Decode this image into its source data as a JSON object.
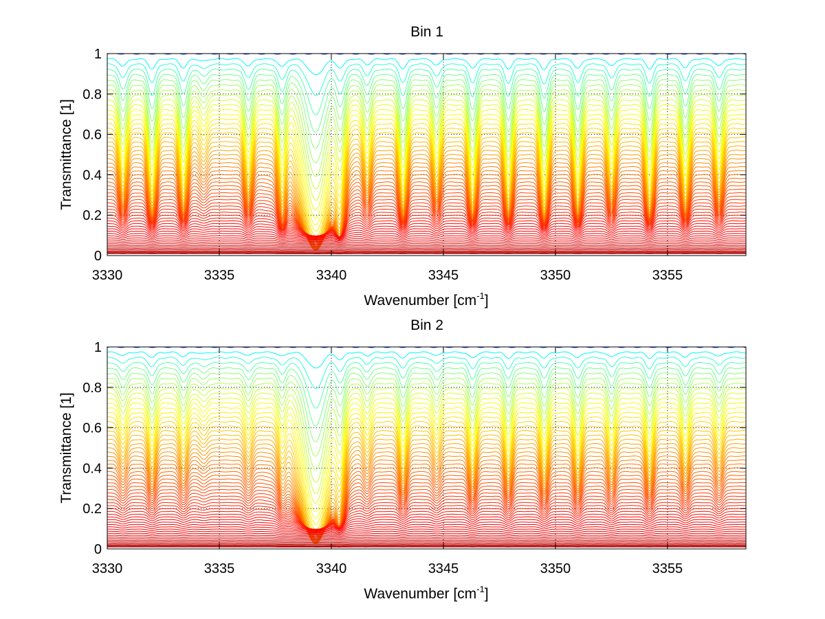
{
  "chart_data": [
    {
      "type": "line",
      "title": "Bin 1",
      "xlabel_main": "Wavenumber [cm",
      "xlabel_sup": "-1",
      "xlabel_tail": "]",
      "ylabel": "Transmittance [1]",
      "xlim": [
        3330,
        3358.5
      ],
      "ylim": [
        0,
        1
      ],
      "xticks": [
        3330,
        3335,
        3340,
        3345,
        3350,
        3355
      ],
      "xtick_labels": [
        "3330",
        "3335",
        "3340",
        "3345",
        "3350",
        "3355"
      ],
      "yticks": [
        0,
        0.2,
        0.4,
        0.6,
        0.8,
        1
      ],
      "ytick_labels": [
        "0",
        "0.2",
        "0.4",
        "0.6",
        "0.8",
        "1"
      ],
      "grid": true,
      "colormap": "jet",
      "series_count": 60,
      "baseline_top": 1.0,
      "baseline_bottom": 0.01,
      "absorption_lines": [
        {
          "x": 3330.7,
          "depth": 0.45,
          "width": 0.16
        },
        {
          "x": 3332.0,
          "depth": 0.6,
          "width": 0.16
        },
        {
          "x": 3333.4,
          "depth": 0.55,
          "width": 0.16
        },
        {
          "x": 3334.3,
          "depth": 0.15,
          "width": 0.16
        },
        {
          "x": 3336.3,
          "depth": 0.45,
          "width": 0.16
        },
        {
          "x": 3337.8,
          "depth": 0.5,
          "width": 0.16
        },
        {
          "x": 3339.3,
          "depth": 1.0,
          "width": 0.3
        },
        {
          "x": 3340.4,
          "depth": 0.55,
          "width": 0.18
        },
        {
          "x": 3341.6,
          "depth": 0.35,
          "width": 0.16
        },
        {
          "x": 3343.2,
          "depth": 0.6,
          "width": 0.16
        },
        {
          "x": 3344.7,
          "depth": 0.4,
          "width": 0.16
        },
        {
          "x": 3346.3,
          "depth": 0.6,
          "width": 0.16
        },
        {
          "x": 3347.9,
          "depth": 0.6,
          "width": 0.16
        },
        {
          "x": 3349.5,
          "depth": 0.65,
          "width": 0.16
        },
        {
          "x": 3351.0,
          "depth": 0.6,
          "width": 0.16
        },
        {
          "x": 3352.5,
          "depth": 0.45,
          "width": 0.16
        },
        {
          "x": 3354.2,
          "depth": 0.6,
          "width": 0.16
        },
        {
          "x": 3355.8,
          "depth": 0.55,
          "width": 0.16
        },
        {
          "x": 3357.3,
          "depth": 0.45,
          "width": 0.16
        }
      ]
    },
    {
      "type": "line",
      "title": "Bin 2",
      "xlabel_main": "Wavenumber [cm",
      "xlabel_sup": "-1",
      "xlabel_tail": "]",
      "ylabel": "Transmittance [1]",
      "xlim": [
        3330,
        3358.5
      ],
      "ylim": [
        0,
        1
      ],
      "xticks": [
        3330,
        3335,
        3340,
        3345,
        3350,
        3355
      ],
      "xtick_labels": [
        "3330",
        "3335",
        "3340",
        "3345",
        "3350",
        "3355"
      ],
      "yticks": [
        0,
        0.2,
        0.4,
        0.6,
        0.8,
        1
      ],
      "ytick_labels": [
        "0",
        "0.2",
        "0.4",
        "0.6",
        "0.8",
        "1"
      ],
      "grid": true,
      "colormap": "jet",
      "series_count": 60,
      "baseline_top": 1.0,
      "baseline_bottom": 0.01,
      "absorption_lines": [
        {
          "x": 3330.7,
          "depth": 0.2,
          "width": 0.16
        },
        {
          "x": 3332.0,
          "depth": 0.3,
          "width": 0.16
        },
        {
          "x": 3333.4,
          "depth": 0.25,
          "width": 0.16
        },
        {
          "x": 3334.3,
          "depth": 0.08,
          "width": 0.16
        },
        {
          "x": 3336.3,
          "depth": 0.2,
          "width": 0.16
        },
        {
          "x": 3337.8,
          "depth": 0.25,
          "width": 0.16
        },
        {
          "x": 3339.3,
          "depth": 1.0,
          "width": 0.3
        },
        {
          "x": 3340.4,
          "depth": 0.45,
          "width": 0.18
        },
        {
          "x": 3341.6,
          "depth": 0.2,
          "width": 0.16
        },
        {
          "x": 3343.2,
          "depth": 0.35,
          "width": 0.16
        },
        {
          "x": 3344.7,
          "depth": 0.2,
          "width": 0.16
        },
        {
          "x": 3346.3,
          "depth": 0.35,
          "width": 0.16
        },
        {
          "x": 3347.9,
          "depth": 0.35,
          "width": 0.16
        },
        {
          "x": 3349.5,
          "depth": 0.35,
          "width": 0.16
        },
        {
          "x": 3351.0,
          "depth": 0.35,
          "width": 0.16
        },
        {
          "x": 3352.5,
          "depth": 0.3,
          "width": 0.16
        },
        {
          "x": 3354.2,
          "depth": 0.35,
          "width": 0.16
        },
        {
          "x": 3355.8,
          "depth": 0.3,
          "width": 0.16
        },
        {
          "x": 3357.3,
          "depth": 0.25,
          "width": 0.16
        }
      ]
    }
  ]
}
